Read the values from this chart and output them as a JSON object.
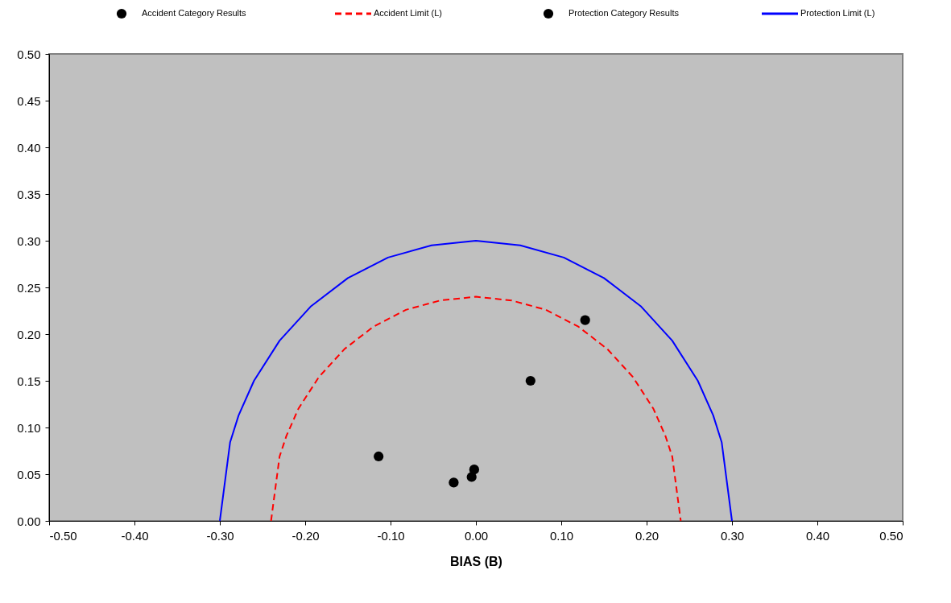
{
  "chart_data": {
    "type": "scatter",
    "xlabel": "BIAS (B)",
    "legend": "top",
    "grid": false,
    "xlim": [
      -0.5,
      0.5
    ],
    "ylim": [
      0,
      0.5
    ],
    "xticks": [
      {
        "value": -0.5,
        "label": "-0.50"
      },
      {
        "value": -0.4,
        "label": "-0.40"
      },
      {
        "value": -0.3,
        "label": "-0.30"
      },
      {
        "value": -0.2,
        "label": "-0.20"
      },
      {
        "value": -0.1,
        "label": "-0.10"
      },
      {
        "value": 0,
        "label": "0.00"
      },
      {
        "value": 0.1,
        "label": "0.10"
      },
      {
        "value": 0.2,
        "label": "0.20"
      },
      {
        "value": 0.3,
        "label": "0.30"
      },
      {
        "value": 0.4,
        "label": "0.40"
      },
      {
        "value": 0.5,
        "label": "0.50"
      }
    ],
    "yticks": [
      {
        "value": 0,
        "label": "0.00"
      },
      {
        "value": 0.05,
        "label": "0.05"
      },
      {
        "value": 0.1,
        "label": "0.10"
      },
      {
        "value": 0.15,
        "label": "0.15"
      },
      {
        "value": 0.2,
        "label": "0.20"
      },
      {
        "value": 0.25,
        "label": "0.25"
      },
      {
        "value": 0.3,
        "label": "0.30"
      },
      {
        "value": 0.35,
        "label": "0.35"
      },
      {
        "value": 0.4,
        "label": "0.40"
      },
      {
        "value": 0.45,
        "label": "0.45"
      },
      {
        "value": 0.5,
        "label": "0.50"
      }
    ],
    "series": [
      {
        "name": "Accident Category Results",
        "marker": "circle",
        "color": "#000000",
        "x": [
          -0.026
        ],
        "values": [
          0.041
        ]
      },
      {
        "name": "Accident Limit (L)",
        "type": "line",
        "line_style": "dashed",
        "marker": "none",
        "color": "#ff0000",
        "x": [
          -0.24,
          -0.23,
          -0.222,
          -0.208,
          -0.184,
          -0.154,
          -0.12,
          -0.082,
          -0.042,
          0,
          0.042,
          0.082,
          0.12,
          0.154,
          0.184,
          0.208,
          0.222,
          0.23,
          0.24
        ],
        "values": [
          0,
          0.069,
          0.091,
          0.12,
          0.154,
          0.184,
          0.208,
          0.226,
          0.236,
          0.24,
          0.236,
          0.226,
          0.208,
          0.184,
          0.154,
          0.12,
          0.091,
          0.069,
          0
        ]
      },
      {
        "name": "Protection Category Results",
        "marker": "circle",
        "color": "#000000",
        "x": [
          -0.114,
          -0.002,
          -0.005,
          0.064,
          0.128
        ],
        "values": [
          0.069,
          0.055,
          0.047,
          0.15,
          0.215
        ]
      },
      {
        "name": "Protection Limit (L)",
        "type": "line",
        "line_style": "solid",
        "marker": "none",
        "color": "#0000ff",
        "x": [
          -0.3,
          -0.288,
          -0.278,
          -0.26,
          -0.23,
          -0.193,
          -0.15,
          -0.103,
          -0.052,
          0,
          0.052,
          0.103,
          0.15,
          0.193,
          0.23,
          0.26,
          0.278,
          0.288,
          0.3
        ],
        "values": [
          0,
          0.084,
          0.113,
          0.15,
          0.193,
          0.23,
          0.26,
          0.282,
          0.295,
          0.3,
          0.295,
          0.282,
          0.26,
          0.23,
          0.193,
          0.15,
          0.113,
          0.084,
          0
        ]
      }
    ]
  }
}
